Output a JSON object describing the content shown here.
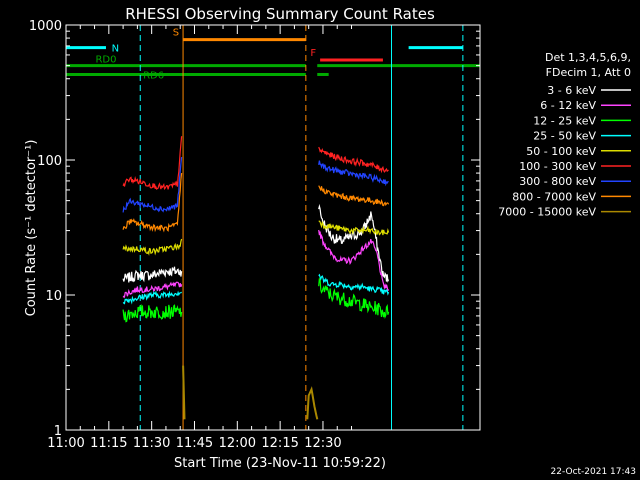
{
  "chart_data": {
    "type": "line",
    "title": "RHESSI Observing Summary Count Rates",
    "xlabel": "Start Time (23-Nov-11 10:59:22)",
    "ylabel": "Count Rate (s⁻¹ detector⁻¹)",
    "ylog": true,
    "ylim": [
      1,
      1000
    ],
    "xlim_minutes_after_1100": [
      0,
      145
    ],
    "x_ticks": [
      "11:00",
      "11:15",
      "11:30",
      "11:45",
      "12:00",
      "12:15",
      "12:30"
    ],
    "y_ticks": [
      "1",
      "10",
      "100",
      "1000"
    ],
    "footer": "22-Oct-2021 17:43",
    "legend": {
      "header": [
        "Det 1,3,4,5,6,9,",
        "FDecim 1, Att 0"
      ],
      "entries": [
        {
          "label": "3 - 6 keV",
          "color": "#ffffff"
        },
        {
          "label": "6 - 12 keV",
          "color": "#ff44ff"
        },
        {
          "label": "12 - 25 keV",
          "color": "#00ff00"
        },
        {
          "label": "25 - 50 keV",
          "color": "#00ffff"
        },
        {
          "label": "50 - 100 keV",
          "color": "#dddd00"
        },
        {
          "label": "100 - 300 keV",
          "color": "#ff2222"
        },
        {
          "label": "300 - 800 keV",
          "color": "#2244ff"
        },
        {
          "label": "800 - 7000 keV",
          "color": "#ff8800"
        },
        {
          "label": "7000 - 15000 keV",
          "color": "#aa8800"
        }
      ]
    },
    "flags": [
      {
        "label": "N",
        "color": "#00ffff",
        "segments": [
          [
            0,
            14
          ],
          [
            120,
            139
          ]
        ],
        "level": 680
      },
      {
        "label": "S",
        "color": "#ff8800",
        "segments": [
          [
            41,
            84
          ]
        ],
        "level": 780
      },
      {
        "label": "F",
        "color": "#ff2222",
        "segments": [
          [
            89,
            111
          ]
        ],
        "level": 550
      },
      {
        "label": "RD0",
        "color": "#00aa00",
        "segments": [
          [
            0,
            84
          ],
          [
            88,
            145
          ]
        ],
        "level": 500
      },
      {
        "label": "RD6",
        "color": "#00aa00",
        "segments": [
          [
            0,
            84
          ],
          [
            88,
            92
          ]
        ],
        "level": 430
      }
    ],
    "vlines": [
      {
        "x": 0,
        "color": "#00ffff",
        "style": "solid"
      },
      {
        "x": 26,
        "color": "#00ffff",
        "style": "dashed"
      },
      {
        "x": 41,
        "color": "#ff8800",
        "style": "solid"
      },
      {
        "x": 84,
        "color": "#ff8800",
        "style": "dashed"
      },
      {
        "x": 114,
        "color": "#00ffff",
        "style": "solid"
      },
      {
        "x": 139,
        "color": "#00ffff",
        "style": "dashed"
      }
    ],
    "series": [
      {
        "name": "3 - 6 keV",
        "color": "#ffffff",
        "segments": [
          {
            "x": [
              20,
              25,
              30,
              35,
              40,
              40.5
            ],
            "y": [
              13,
              14,
              14,
              15,
              15,
              15
            ]
          },
          {
            "x": [
              88.5,
              90,
              93,
              96,
              100,
              104,
              107,
              109,
              111,
              113
            ],
            "y": [
              45,
              35,
              27,
              25,
              27,
              30,
              40,
              23,
              14,
              13
            ]
          }
        ]
      },
      {
        "name": "6 - 12 keV",
        "color": "#ff44ff",
        "segments": [
          {
            "x": [
              20,
              25,
              30,
              35,
              40,
              40.5
            ],
            "y": [
              10,
              11,
              11,
              11.5,
              12,
              12
            ]
          },
          {
            "x": [
              88.5,
              90,
              93,
              96,
              100,
              104,
              107,
              109,
              111,
              113
            ],
            "y": [
              30,
              25,
              20,
              18,
              18,
              22,
              25,
              20,
              12,
              11
            ]
          }
        ]
      },
      {
        "name": "12 - 25 keV",
        "color": "#00ff00",
        "segments": [
          {
            "x": [
              20,
              25,
              30,
              35,
              40,
              40.5
            ],
            "y": [
              7,
              7.5,
              7.5,
              7.5,
              7.5,
              7.5
            ]
          },
          {
            "x": [
              88.5,
              90,
              93,
              96,
              100,
              104,
              107,
              109,
              111,
              113
            ],
            "y": [
              12,
              11,
              10,
              9.5,
              9,
              8.5,
              8,
              8,
              7.5,
              7.5
            ]
          }
        ]
      },
      {
        "name": "25 - 50 keV",
        "color": "#00ffff",
        "segments": [
          {
            "x": [
              20,
              25,
              30,
              35,
              40,
              40.5
            ],
            "y": [
              9,
              9.5,
              10,
              10,
              10.5,
              10.5
            ]
          },
          {
            "x": [
              88.5,
              90,
              93,
              96,
              100,
              104,
              107,
              109,
              111,
              113
            ],
            "y": [
              14,
              13,
              12,
              12,
              11.5,
              11.5,
              11,
              11,
              10.5,
              10.5
            ]
          }
        ]
      },
      {
        "name": "50 - 100 keV",
        "color": "#dddd00",
        "segments": [
          {
            "x": [
              20,
              25,
              30,
              35,
              40,
              40.5
            ],
            "y": [
              22,
              22,
              21,
              22,
              23,
              26
            ]
          },
          {
            "x": [
              88.5,
              90,
              93,
              96,
              100,
              104,
              107,
              109,
              111,
              113
            ],
            "y": [
              36,
              33,
              32,
              31,
              30,
              30,
              30,
              29,
              29,
              29
            ]
          }
        ]
      },
      {
        "name": "100 - 300 keV",
        "color": "#ff2222",
        "segments": [
          {
            "x": [
              20,
              22,
              25,
              30,
              35,
              39,
              40,
              40.5
            ],
            "y": [
              65,
              72,
              70,
              65,
              62,
              66,
              110,
              150
            ]
          },
          {
            "x": [
              88.5,
              90,
              93,
              96,
              100,
              104,
              107,
              109,
              111,
              113
            ],
            "y": [
              120,
              115,
              108,
              103,
              98,
              95,
              92,
              88,
              86,
              84
            ]
          }
        ]
      },
      {
        "name": "300 - 800 keV",
        "color": "#2244ff",
        "segments": [
          {
            "x": [
              20,
              22,
              25,
              30,
              35,
              39,
              40,
              40.5
            ],
            "y": [
              42,
              49,
              48,
              45,
              43,
              46,
              80,
              105
            ]
          },
          {
            "x": [
              88.5,
              90,
              93,
              96,
              100,
              104,
              107,
              109,
              111,
              113
            ],
            "y": [
              95,
              90,
              85,
              82,
              79,
              76,
              74,
              72,
              70,
              69
            ]
          }
        ]
      },
      {
        "name": "800 - 7000 keV",
        "color": "#ff8800",
        "segments": [
          {
            "x": [
              20,
              22,
              25,
              30,
              35,
              39,
              40,
              40.5
            ],
            "y": [
              30,
              35,
              34,
              32,
              31,
              33,
              60,
              80
            ]
          },
          {
            "x": [
              88.5,
              90,
              93,
              96,
              100,
              104,
              107,
              109,
              111,
              113
            ],
            "y": [
              64,
              60,
              56,
              54,
              52,
              51,
              50,
              49,
              48,
              47
            ]
          }
        ]
      },
      {
        "name": "7000 - 15000 keV",
        "color": "#aa8800",
        "segments": [
          {
            "x": [
              41,
              41.5
            ],
            "y": [
              3,
              1.2
            ]
          },
          {
            "x": [
              84.5,
              85,
              86,
              87,
              88
            ],
            "y": [
              1.2,
              1.8,
              2,
              1.5,
              1.2
            ]
          }
        ]
      }
    ]
  }
}
